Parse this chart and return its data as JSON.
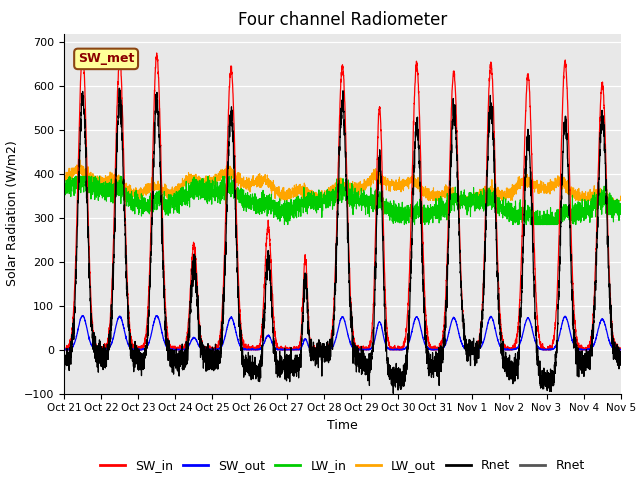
{
  "title": "Four channel Radiometer",
  "xlabel": "Time",
  "ylabel": "Solar Radiation (W/m2)",
  "ylim": [
    -100,
    720
  ],
  "yticks": [
    -100,
    0,
    100,
    200,
    300,
    400,
    500,
    600,
    700
  ],
  "x_tick_labels": [
    "Oct 21",
    "Oct 22",
    "Oct 23",
    "Oct 24",
    "Oct 25",
    "Oct 26",
    "Oct 27",
    "Oct 28",
    "Oct 29",
    "Oct 30",
    "Oct 31",
    "Nov 1",
    "Nov 2",
    "Nov 3",
    "Nov 4",
    "Nov 5"
  ],
  "annotation_text": "SW_met",
  "colors": {
    "SW_in": "#FF0000",
    "SW_out": "#0000FF",
    "LW_in": "#00CC00",
    "LW_out": "#FFA500",
    "Rnet": "#000000",
    "Rnet2": "#555555"
  },
  "background_color": "#E8E8E8",
  "title_fontsize": 12,
  "axis_fontsize": 9,
  "legend_fontsize": 9
}
